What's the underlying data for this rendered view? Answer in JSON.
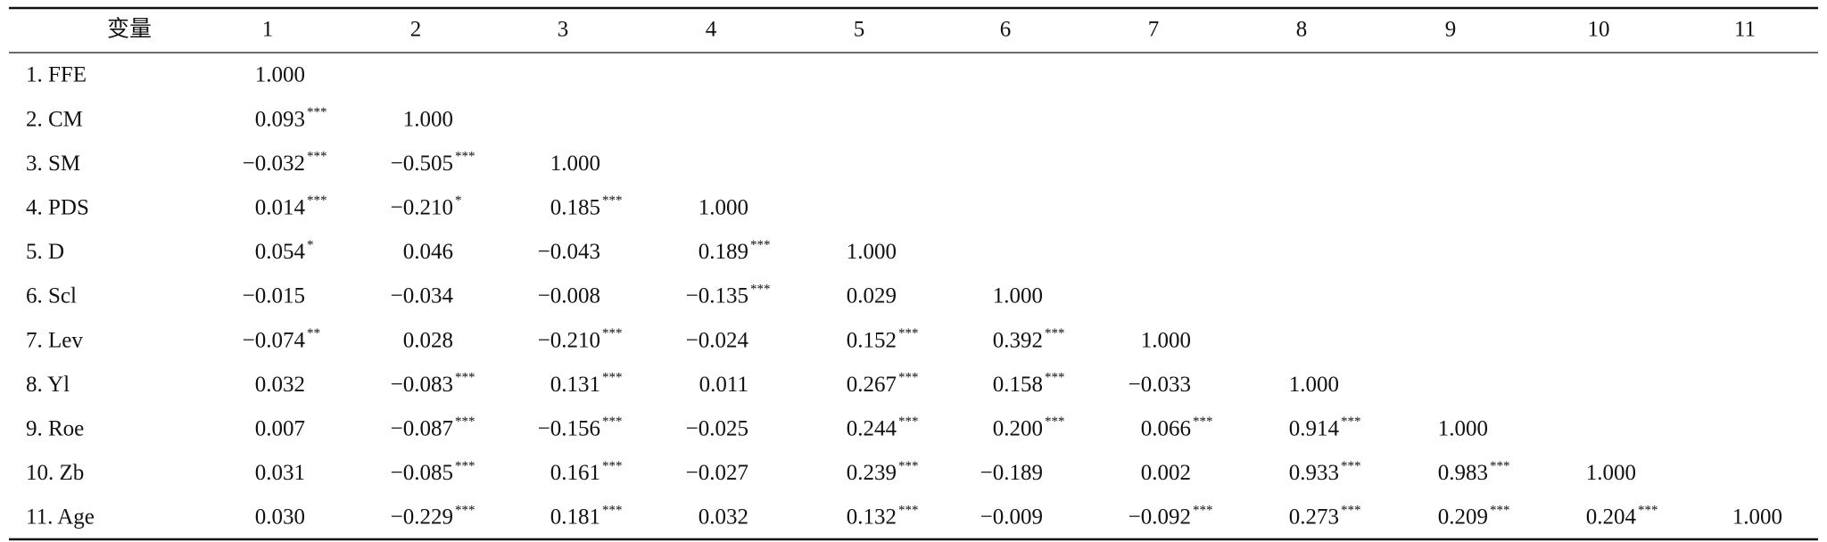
{
  "table": {
    "header": [
      "变量",
      "1",
      "2",
      "3",
      "4",
      "5",
      "6",
      "7",
      "8",
      "9",
      "10",
      "11"
    ],
    "rows": [
      {
        "label": "1. FFE",
        "cells": [
          {
            "value": "1.000"
          }
        ]
      },
      {
        "label": "2. CM",
        "cells": [
          {
            "value": "0.093",
            "stars": "***"
          },
          {
            "value": "1.000"
          }
        ]
      },
      {
        "label": "3. SM",
        "cells": [
          {
            "value": "−0.032",
            "stars": "***"
          },
          {
            "value": "−0.505",
            "stars": "***"
          },
          {
            "value": "1.000"
          }
        ]
      },
      {
        "label": "4. PDS",
        "cells": [
          {
            "value": "0.014",
            "stars": "***"
          },
          {
            "value": "−0.210",
            "stars": "*"
          },
          {
            "value": "0.185",
            "stars": "***"
          },
          {
            "value": "1.000"
          }
        ]
      },
      {
        "label": "5. D",
        "cells": [
          {
            "value": "0.054",
            "stars": "*"
          },
          {
            "value": "0.046"
          },
          {
            "value": "−0.043"
          },
          {
            "value": "0.189",
            "stars": "***"
          },
          {
            "value": "1.000"
          }
        ]
      },
      {
        "label": "6. Scl",
        "cells": [
          {
            "value": "−0.015"
          },
          {
            "value": "−0.034"
          },
          {
            "value": "−0.008"
          },
          {
            "value": "−0.135",
            "stars": "***"
          },
          {
            "value": "0.029"
          },
          {
            "value": "1.000"
          }
        ]
      },
      {
        "label": "7. Lev",
        "cells": [
          {
            "value": "−0.074",
            "stars": "**"
          },
          {
            "value": "0.028"
          },
          {
            "value": "−0.210",
            "stars": "***"
          },
          {
            "value": "−0.024"
          },
          {
            "value": "0.152",
            "stars": "***"
          },
          {
            "value": "0.392",
            "stars": "***"
          },
          {
            "value": "1.000"
          }
        ]
      },
      {
        "label": "8. Yl",
        "cells": [
          {
            "value": "0.032"
          },
          {
            "value": "−0.083",
            "stars": "***"
          },
          {
            "value": "0.131",
            "stars": "***"
          },
          {
            "value": "0.011"
          },
          {
            "value": "0.267",
            "stars": "***"
          },
          {
            "value": "0.158",
            "stars": "***"
          },
          {
            "value": "−0.033"
          },
          {
            "value": "1.000"
          }
        ]
      },
      {
        "label": "9. Roe",
        "cells": [
          {
            "value": "0.007"
          },
          {
            "value": "−0.087",
            "stars": "***"
          },
          {
            "value": "−0.156",
            "stars": "***"
          },
          {
            "value": "−0.025"
          },
          {
            "value": "0.244",
            "stars": "***"
          },
          {
            "value": "0.200",
            "stars": "***"
          },
          {
            "value": "0.066",
            "stars": "***"
          },
          {
            "value": "0.914",
            "stars": "***"
          },
          {
            "value": "1.000"
          }
        ]
      },
      {
        "label": "10. Zb",
        "cells": [
          {
            "value": "0.031"
          },
          {
            "value": "−0.085",
            "stars": "***"
          },
          {
            "value": "0.161",
            "stars": "***"
          },
          {
            "value": "−0.027"
          },
          {
            "value": "0.239",
            "stars": "***"
          },
          {
            "value": "−0.189"
          },
          {
            "value": "0.002"
          },
          {
            "value": "0.933",
            "stars": "***"
          },
          {
            "value": "0.983",
            "stars": "***"
          },
          {
            "value": "1.000"
          }
        ]
      },
      {
        "label": "11. Age",
        "cells": [
          {
            "value": "0.030"
          },
          {
            "value": "−0.229",
            "stars": "***"
          },
          {
            "value": "0.181",
            "stars": "***"
          },
          {
            "value": "0.032"
          },
          {
            "value": "0.132",
            "stars": "***"
          },
          {
            "value": "−0.009"
          },
          {
            "value": "−0.092",
            "stars": "***"
          },
          {
            "value": "0.273",
            "stars": "***"
          },
          {
            "value": "0.209",
            "stars": "***"
          },
          {
            "value": "0.204",
            "stars": "***"
          },
          {
            "value": "1.000"
          }
        ]
      }
    ]
  }
}
